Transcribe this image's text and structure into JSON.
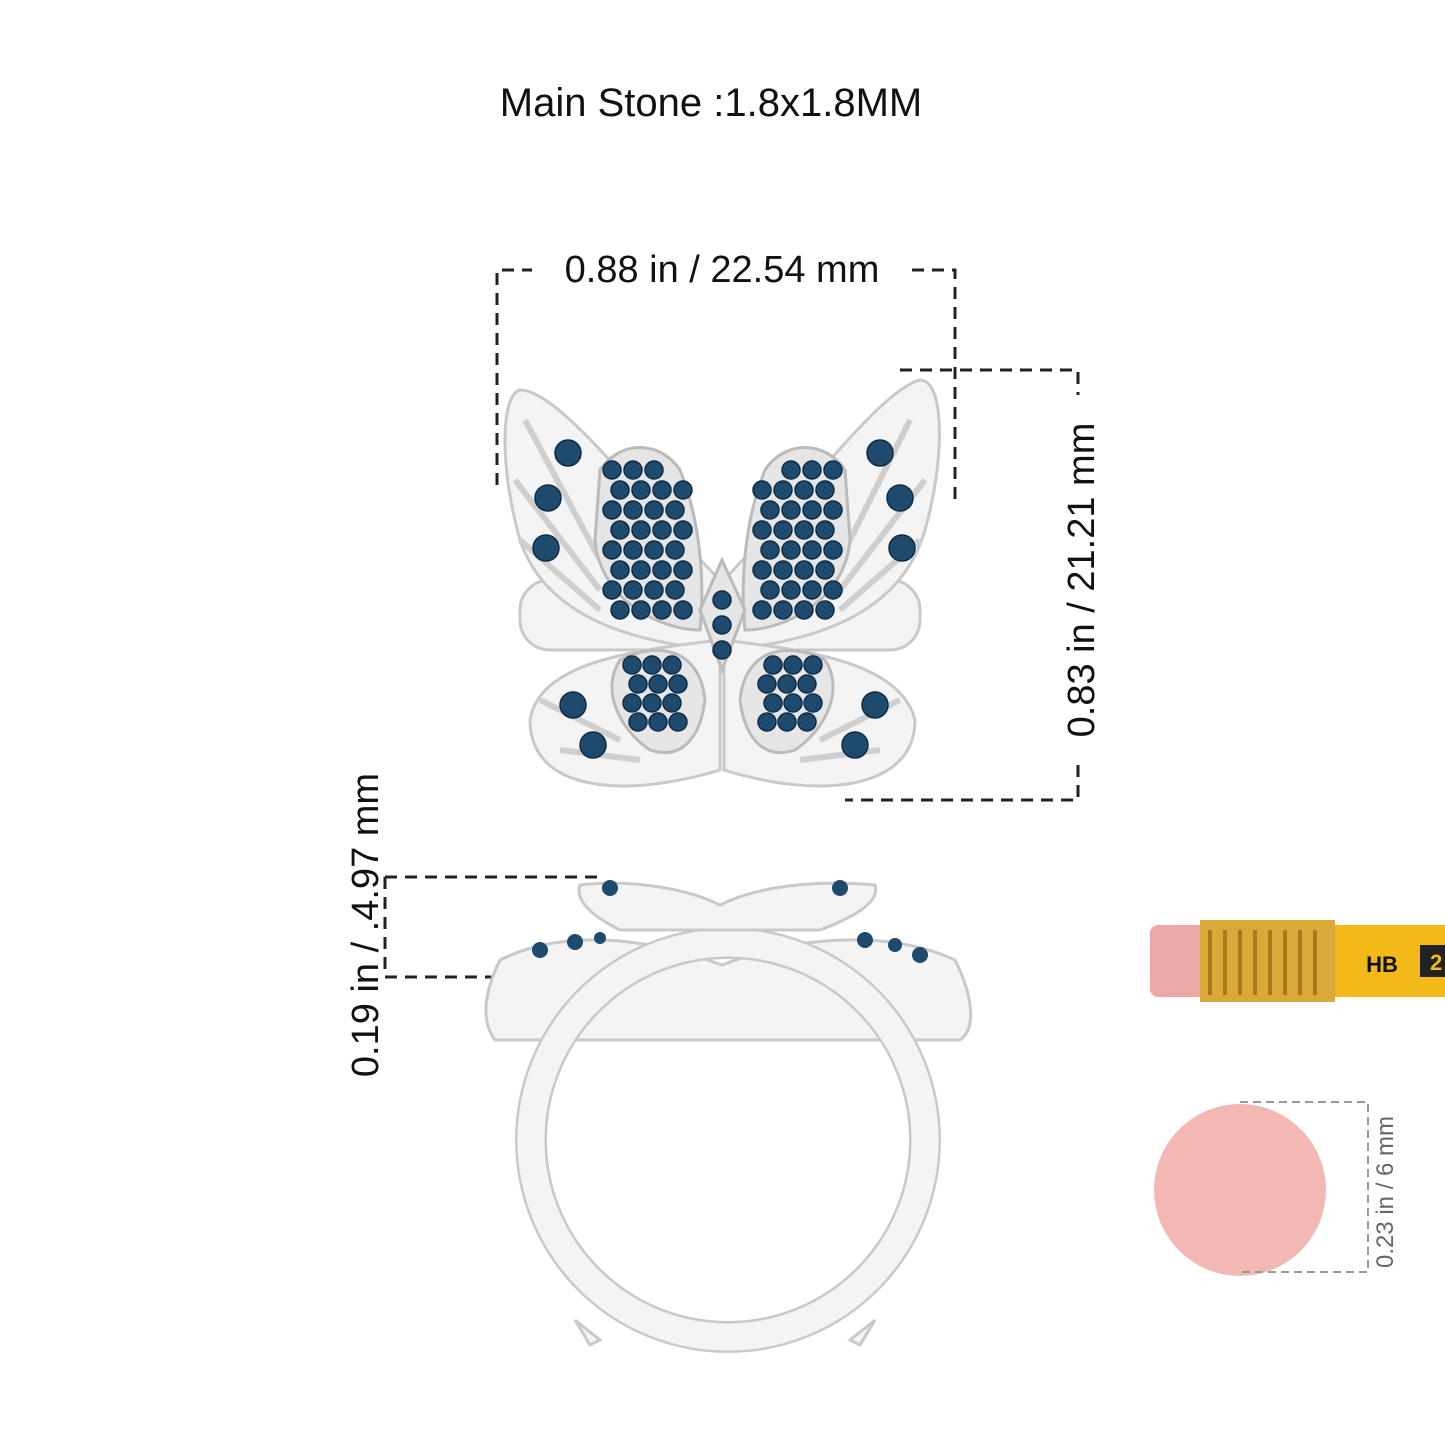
{
  "header": {
    "title": "Main Stone :1.8x1.8MM"
  },
  "dimensions": {
    "width": "0.88 in / 22.54 mm",
    "height": "0.83 in / 21.21 mm",
    "depth": "0.19 in / .4.97 mm",
    "eraser": "0.23 in / 6 mm"
  },
  "pencil": {
    "grade": "HB",
    "number": "2"
  }
}
